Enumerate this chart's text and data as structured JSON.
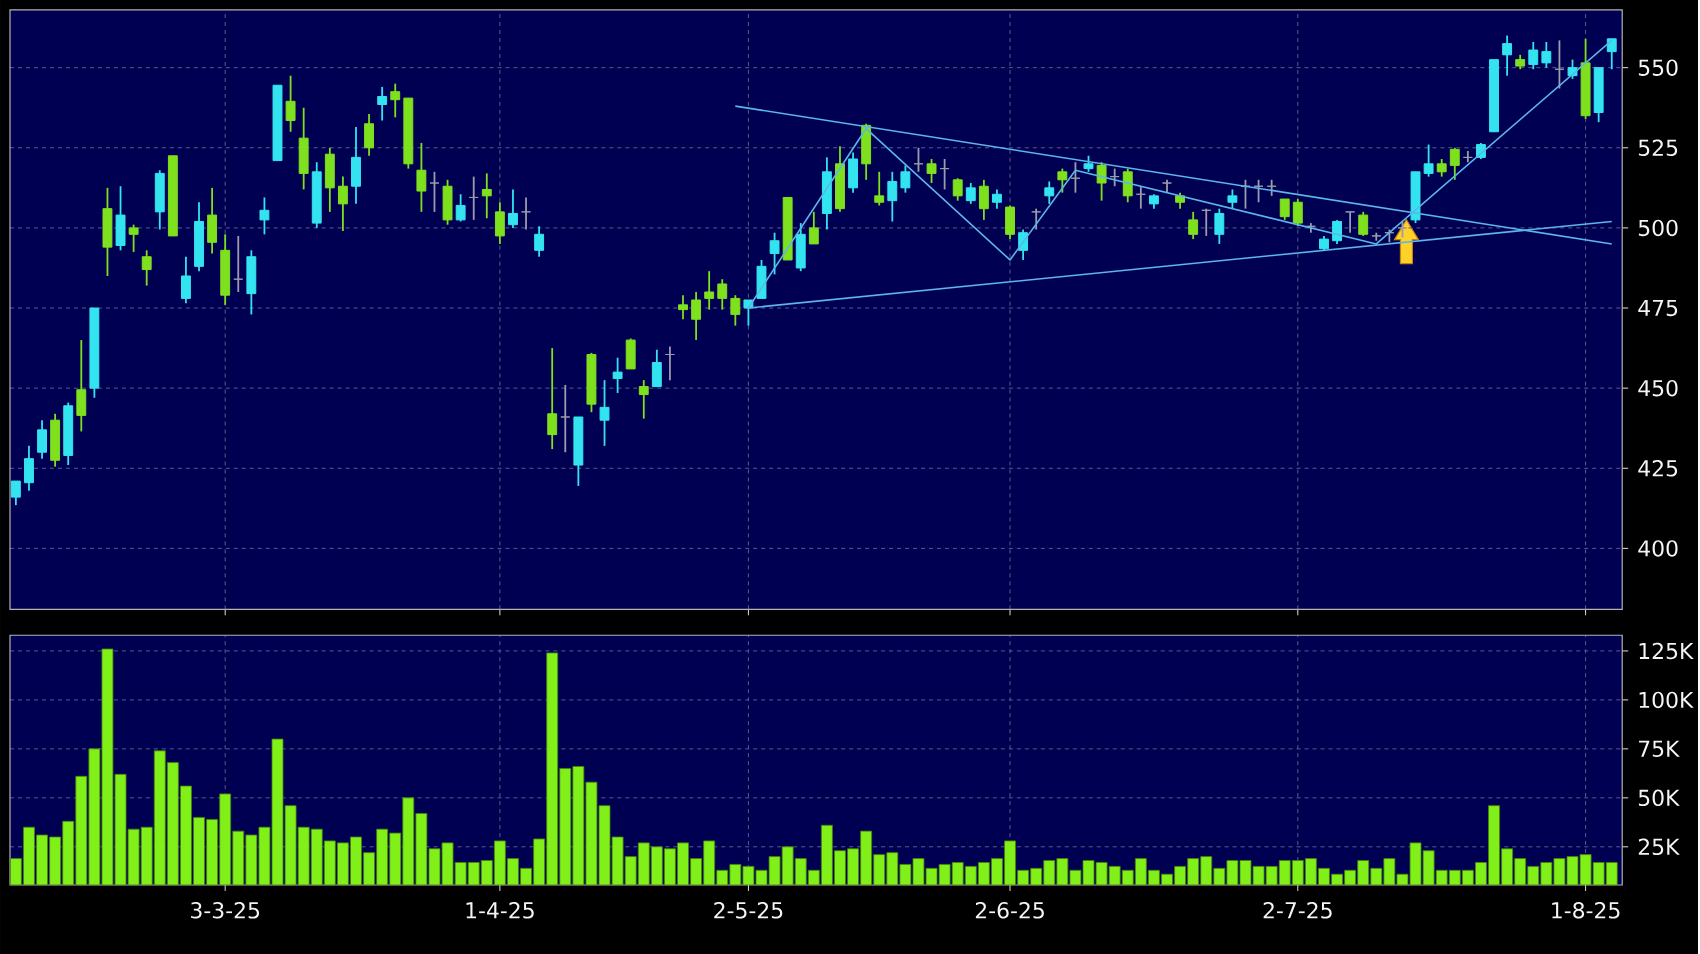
{
  "chart_data": [
    {
      "type": "candlestick",
      "tick_labels": "y",
      "grid": true,
      "categories": [
        null,
        null,
        null,
        null,
        null,
        null,
        null,
        null,
        null,
        null,
        null,
        null,
        null,
        null,
        null,
        null,
        null,
        null,
        null,
        null,
        null,
        null,
        null,
        null,
        null,
        null,
        null,
        null,
        null,
        null,
        null,
        null,
        null,
        null,
        null,
        null,
        null,
        null,
        null,
        null,
        null,
        null,
        null,
        null,
        null,
        null,
        null,
        null,
        null,
        null,
        null,
        null,
        null,
        null,
        null,
        null,
        null,
        null,
        null,
        null,
        null,
        null,
        null,
        null,
        null,
        null,
        null,
        null,
        null,
        null,
        null,
        null,
        null,
        null,
        null,
        null,
        null,
        null,
        null,
        null,
        null,
        null,
        null,
        null,
        null,
        null,
        null,
        null,
        null,
        null,
        null,
        null,
        null,
        null,
        null,
        null,
        null,
        null,
        null,
        null,
        null,
        null,
        null,
        null,
        null,
        null,
        null,
        null,
        null,
        null,
        null,
        null,
        null,
        null,
        null,
        null,
        null,
        null,
        null,
        null,
        null,
        null,
        null
      ],
      "ylim": [
        381,
        568
      ],
      "yticks": [
        400,
        425,
        450,
        475,
        500,
        525,
        550
      ],
      "ohlc": [
        [
          416,
          421,
          413.5,
          421
        ],
        [
          420.5,
          432,
          418,
          428
        ],
        [
          430,
          440,
          428,
          437
        ],
        [
          440,
          442,
          425.5,
          427.5
        ],
        [
          429,
          445.5,
          426,
          444.5
        ],
        [
          449.5,
          465,
          436.5,
          441.5
        ],
        [
          450,
          475,
          447,
          475
        ],
        [
          506,
          512.5,
          485,
          494
        ],
        [
          494.5,
          513,
          493,
          504
        ],
        [
          500,
          501,
          492.5,
          498
        ],
        [
          491,
          493,
          482,
          487
        ],
        [
          505,
          518,
          499.5,
          517
        ],
        [
          522.5,
          522.5,
          497.5,
          497.5
        ],
        [
          478,
          491,
          476.5,
          485
        ],
        [
          488,
          508,
          486.5,
          502
        ],
        [
          504,
          512.5,
          492,
          495.5
        ],
        [
          493,
          498,
          476,
          479
        ],
        [
          484,
          497.5,
          480,
          484
        ],
        [
          479.5,
          493,
          473,
          491
        ],
        [
          502.5,
          509.5,
          498,
          505.5
        ],
        [
          521,
          544.5,
          521,
          544.5
        ],
        [
          539.5,
          547.5,
          530,
          533.5
        ],
        [
          528,
          537.5,
          512,
          517
        ],
        [
          501.5,
          520.5,
          500,
          517.5
        ],
        [
          523,
          525,
          505,
          512.5
        ],
        [
          513,
          516,
          499,
          507.5
        ],
        [
          513,
          531.5,
          507.5,
          522
        ],
        [
          532.5,
          535.5,
          522.5,
          525
        ],
        [
          538.5,
          544,
          533.5,
          541
        ],
        [
          542.5,
          545,
          534.5,
          540
        ],
        [
          540.5,
          540.5,
          518.5,
          520
        ],
        [
          518,
          526.5,
          505,
          511.5
        ],
        [
          514,
          517.5,
          505,
          514
        ],
        [
          513,
          515,
          501,
          502.5
        ],
        [
          502.5,
          510.5,
          502,
          507
        ],
        [
          509.5,
          516,
          502.5,
          509.5
        ],
        [
          512,
          517,
          503,
          510
        ],
        [
          505,
          508,
          495,
          497.5
        ],
        [
          501,
          512,
          500,
          504.5
        ],
        [
          505,
          509.5,
          499.5,
          505
        ],
        [
          493,
          500.5,
          491,
          498
        ],
        [
          442,
          462.5,
          431,
          435.5
        ],
        [
          441,
          451,
          430,
          441
        ],
        [
          426,
          441,
          419.5,
          441
        ],
        [
          460.5,
          461,
          442.5,
          445
        ],
        [
          440,
          452.5,
          432,
          444
        ],
        [
          453,
          459.5,
          448.5,
          455
        ],
        [
          465,
          465.5,
          456,
          456
        ],
        [
          450.5,
          452.5,
          440.5,
          448
        ],
        [
          450.5,
          462,
          450.5,
          458
        ],
        [
          460.5,
          463,
          452.5,
          460.5
        ],
        [
          476,
          479,
          471.5,
          474.5
        ],
        [
          477.5,
          480,
          465,
          471.5
        ],
        [
          480,
          486.5,
          474.5,
          478
        ],
        [
          482.5,
          484,
          474.5,
          478
        ],
        [
          478,
          479,
          469.5,
          473
        ],
        [
          475,
          477.5,
          469.5,
          477.5
        ],
        [
          478,
          490,
          478,
          488
        ],
        [
          492,
          498.5,
          485.5,
          496
        ],
        [
          509.5,
          509.5,
          490,
          490
        ],
        [
          487.5,
          501.5,
          486.5,
          498
        ],
        [
          500,
          505,
          495,
          495
        ],
        [
          504.5,
          522,
          499.5,
          517.5
        ],
        [
          520,
          525.5,
          505,
          506
        ],
        [
          512.5,
          523.5,
          511,
          521.5
        ],
        [
          532,
          532.5,
          515,
          520
        ],
        [
          510,
          517.5,
          507,
          508
        ],
        [
          508.5,
          517.5,
          502,
          514.5
        ],
        [
          512.5,
          519.5,
          511,
          517.5
        ],
        [
          520,
          525,
          517.5,
          520
        ],
        [
          520,
          521.5,
          514,
          517
        ],
        [
          518.5,
          521.5,
          512,
          518.5
        ],
        [
          515,
          515.5,
          508.5,
          510
        ],
        [
          508.5,
          514,
          507.5,
          512.5
        ],
        [
          513,
          515,
          502.5,
          506
        ],
        [
          508,
          512,
          506,
          510.5
        ],
        [
          506.5,
          507,
          496.5,
          498
        ],
        [
          493,
          499.5,
          490,
          498.5
        ],
        [
          505,
          506,
          499.5,
          505
        ],
        [
          510,
          514.5,
          507.5,
          512.5
        ],
        [
          517.5,
          518.5,
          511,
          515
        ],
        [
          515.5,
          520.5,
          511,
          515.5
        ],
        [
          518.5,
          522.5,
          517.5,
          520
        ],
        [
          519.5,
          520.5,
          508.5,
          514
        ],
        [
          516,
          518.5,
          513,
          516
        ],
        [
          517.5,
          518.5,
          508,
          510
        ],
        [
          510.5,
          513,
          506,
          510.5
        ],
        [
          507.5,
          510.5,
          506,
          510
        ],
        [
          514,
          515,
          511,
          514
        ],
        [
          510,
          511,
          506,
          508
        ],
        [
          502.5,
          505,
          496.5,
          498
        ],
        [
          505.5,
          506,
          497.5,
          505.5
        ],
        [
          498,
          506,
          495,
          504.5
        ],
        [
          508,
          512,
          506,
          510
        ],
        [
          513,
          515,
          506,
          513
        ],
        [
          513,
          515,
          508,
          513
        ],
        [
          513,
          515,
          510,
          513
        ],
        [
          509,
          509,
          502.5,
          503.5
        ],
        [
          508,
          509,
          500.5,
          501.5
        ],
        [
          500.5,
          501.5,
          498.5,
          500.5
        ],
        [
          493.5,
          497.5,
          493,
          496.5
        ],
        [
          496,
          502.5,
          495,
          502
        ],
        [
          505,
          505,
          498.5,
          505
        ],
        [
          504,
          505,
          497.5,
          498
        ],
        [
          497.5,
          498.5,
          496,
          497.5
        ],
        [
          498.5,
          499.5,
          495.5,
          498.5
        ],
        [
          500,
          502,
          497,
          500
        ],
        [
          502.5,
          517.5,
          501.5,
          517.5
        ],
        [
          517,
          526,
          516,
          520
        ],
        [
          520,
          521.5,
          516,
          517.5
        ],
        [
          524.5,
          525,
          515,
          519.5
        ],
        [
          522,
          524,
          520.5,
          522
        ],
        [
          522,
          526.5,
          521.5,
          526
        ],
        [
          530,
          552.5,
          530,
          552.5
        ],
        [
          554,
          560,
          547.5,
          557.5
        ],
        [
          552.5,
          554,
          549.5,
          550.5
        ],
        [
          551,
          558,
          549.5,
          555.5
        ],
        [
          551.5,
          558,
          550,
          555
        ],
        [
          549.5,
          558.5,
          543.5,
          549.5
        ],
        [
          547.5,
          552.5,
          546.5,
          550
        ],
        [
          551.5,
          559,
          534,
          535
        ],
        [
          536,
          550,
          533,
          550
        ],
        [
          555,
          559,
          549.5,
          559
        ]
      ],
      "colors": [
        "#33e4f0",
        "#33e4f0",
        "#33e4f0",
        "#7fe01e",
        "#33e4f0",
        "#7fe01e",
        "#33e4f0",
        "#7fe01e",
        "#33e4f0",
        "#7fe01e",
        "#7fe01e",
        "#33e4f0",
        "#7fe01e",
        "#33e4f0",
        "#33e4f0",
        "#7fe01e",
        "#7fe01e",
        "#9c9cac",
        "#33e4f0",
        "#33e4f0",
        "#33e4f0",
        "#7fe01e",
        "#7fe01e",
        "#33e4f0",
        "#7fe01e",
        "#7fe01e",
        "#33e4f0",
        "#7fe01e",
        "#33e4f0",
        "#7fe01e",
        "#7fe01e",
        "#7fe01e",
        "#9c9cac",
        "#7fe01e",
        "#33e4f0",
        "#9c9cac",
        "#7fe01e",
        "#7fe01e",
        "#33e4f0",
        "#9c9cac",
        "#33e4f0",
        "#7fe01e",
        "#9c9cac",
        "#33e4f0",
        "#7fe01e",
        "#33e4f0",
        "#33e4f0",
        "#7fe01e",
        "#7fe01e",
        "#33e4f0",
        "#9c9cac",
        "#7fe01e",
        "#7fe01e",
        "#7fe01e",
        "#7fe01e",
        "#7fe01e",
        "#33e4f0",
        "#33e4f0",
        "#33e4f0",
        "#7fe01e",
        "#33e4f0",
        "#7fe01e",
        "#33e4f0",
        "#7fe01e",
        "#33e4f0",
        "#7fe01e",
        "#7fe01e",
        "#33e4f0",
        "#33e4f0",
        "#9c9cac",
        "#7fe01e",
        "#9c9cac",
        "#7fe01e",
        "#33e4f0",
        "#7fe01e",
        "#33e4f0",
        "#7fe01e",
        "#33e4f0",
        "#9c9cac",
        "#33e4f0",
        "#7fe01e",
        "#9c9cac",
        "#33e4f0",
        "#7fe01e",
        "#9c9cac",
        "#7fe01e",
        "#9c9cac",
        "#33e4f0",
        "#9c9cac",
        "#7fe01e",
        "#7fe01e",
        "#9c9cac",
        "#33e4f0",
        "#33e4f0",
        "#9c9cac",
        "#9c9cac",
        "#9c9cac",
        "#7fe01e",
        "#7fe01e",
        "#9c9cac",
        "#33e4f0",
        "#33e4f0",
        "#9c9cac",
        "#7fe01e",
        "#9c9cac",
        "#9c9cac",
        "#9c9cac",
        "#33e4f0",
        "#33e4f0",
        "#7fe01e",
        "#7fe01e",
        "#9c9cac",
        "#33e4f0",
        "#33e4f0",
        "#33e4f0",
        "#7fe01e",
        "#33e4f0",
        "#33e4f0",
        "#9c9cac",
        "#33e4f0",
        "#7fe01e",
        "#33e4f0",
        "#33e4f0"
      ],
      "series": [
        {
          "type": "line",
          "color": "#5cb6ea",
          "values": [
            null,
            null,
            null,
            null,
            null,
            null,
            null,
            null,
            null,
            null,
            null,
            null,
            null,
            null,
            null,
            null,
            null,
            null,
            null,
            null,
            null,
            null,
            null,
            null,
            null,
            null,
            null,
            null,
            null,
            null,
            null,
            null,
            null,
            null,
            null,
            null,
            null,
            null,
            null,
            null,
            null,
            null,
            null,
            null,
            null,
            null,
            null,
            null,
            null,
            null,
            null,
            null,
            null,
            null,
            null,
            538,
            null,
            null,
            null,
            null,
            null,
            null,
            null,
            null,
            null,
            null,
            null,
            null,
            null,
            null,
            null,
            null,
            null,
            null,
            null,
            null,
            null,
            null,
            null,
            null,
            null,
            null,
            null,
            null,
            null,
            null,
            null,
            null,
            null,
            null,
            null,
            null,
            null,
            null,
            null,
            null,
            null,
            null,
            null,
            null,
            null,
            null,
            null,
            null,
            null,
            null,
            null,
            null,
            null,
            null,
            null,
            null,
            null,
            null,
            null,
            null,
            null,
            null,
            null,
            null,
            null,
            null,
            495
          ]
        },
        {
          "type": "line",
          "color": "#5cb6ea",
          "values": [
            null,
            null,
            null,
            null,
            null,
            null,
            null,
            null,
            null,
            null,
            null,
            null,
            null,
            null,
            null,
            null,
            null,
            null,
            null,
            null,
            null,
            null,
            null,
            null,
            null,
            null,
            null,
            null,
            null,
            null,
            null,
            null,
            null,
            null,
            null,
            null,
            null,
            null,
            null,
            null,
            null,
            null,
            null,
            null,
            null,
            null,
            null,
            null,
            null,
            null,
            null,
            null,
            null,
            null,
            null,
            null,
            475,
            null,
            null,
            null,
            null,
            null,
            null,
            null,
            null,
            null,
            null,
            null,
            null,
            null,
            null,
            null,
            null,
            null,
            null,
            null,
            null,
            null,
            null,
            null,
            null,
            null,
            null,
            null,
            null,
            null,
            null,
            null,
            null,
            null,
            null,
            null,
            null,
            null,
            null,
            null,
            null,
            null,
            null,
            null,
            null,
            null,
            null,
            null,
            null,
            null,
            null,
            null,
            null,
            null,
            null,
            null,
            null,
            null,
            null,
            null,
            null,
            null,
            null,
            null,
            null,
            null,
            502
          ]
        },
        {
          "type": "line",
          "color": "#5cb6ea",
          "values": [
            null,
            null,
            null,
            null,
            null,
            null,
            null,
            null,
            null,
            null,
            null,
            null,
            null,
            null,
            null,
            null,
            null,
            null,
            null,
            null,
            null,
            null,
            null,
            null,
            null,
            null,
            null,
            null,
            null,
            null,
            null,
            null,
            null,
            null,
            null,
            null,
            null,
            null,
            null,
            null,
            null,
            null,
            null,
            null,
            null,
            null,
            null,
            null,
            null,
            null,
            null,
            null,
            null,
            null,
            null,
            null,
            475,
            null,
            null,
            null,
            null,
            null,
            null,
            null,
            null,
            531,
            null,
            null,
            null,
            null,
            null,
            null,
            null,
            null,
            null,
            null,
            490,
            null,
            null,
            null,
            null,
            518,
            null,
            null,
            null,
            null,
            null,
            null,
            null,
            null,
            null,
            null,
            null,
            null,
            null,
            null,
            null,
            null,
            null,
            null,
            null,
            null,
            null,
            null,
            495,
            null,
            null,
            null,
            null,
            null,
            null,
            null,
            null,
            null,
            null,
            null,
            null,
            null,
            null,
            null,
            null,
            null,
            558.5
          ]
        }
      ]
    },
    {
      "type": "bar",
      "grid": true,
      "color": "#80f018",
      "categories": [
        null,
        null,
        null,
        null,
        null,
        null,
        null,
        null,
        null,
        null,
        null,
        null,
        null,
        null,
        null,
        null,
        "3-3-25",
        null,
        null,
        null,
        null,
        null,
        null,
        null,
        null,
        null,
        null,
        null,
        null,
        null,
        null,
        null,
        null,
        null,
        null,
        null,
        null,
        "1-4-25",
        null,
        null,
        null,
        null,
        null,
        null,
        null,
        null,
        null,
        null,
        null,
        null,
        null,
        null,
        null,
        null,
        null,
        null,
        "2-5-25",
        null,
        null,
        null,
        null,
        null,
        null,
        null,
        null,
        null,
        null,
        null,
        null,
        null,
        null,
        null,
        null,
        null,
        null,
        null,
        "2-6-25",
        null,
        null,
        null,
        null,
        null,
        null,
        null,
        null,
        null,
        null,
        null,
        null,
        null,
        null,
        null,
        null,
        null,
        null,
        null,
        null,
        null,
        "2-7-25",
        null,
        null,
        null,
        null,
        null,
        null,
        null,
        null,
        null,
        null,
        null,
        null,
        null,
        null,
        null,
        null,
        null,
        null,
        null,
        null,
        null,
        "1-8-25",
        null,
        null
      ],
      "ylim": [
        5500,
        133000
      ],
      "yticks": [
        {
          "value": 25000,
          "label": "25K"
        },
        {
          "value": 50000,
          "label": "50K"
        },
        {
          "value": 75000,
          "label": "75K"
        },
        {
          "value": 100000,
          "label": "100K"
        },
        {
          "value": 125000,
          "label": "125K"
        }
      ],
      "values": [
        19000,
        35000,
        31000,
        30000,
        38000,
        61000,
        75000,
        126000,
        62000,
        34000,
        35000,
        74000,
        68000,
        56000,
        40000,
        39000,
        52000,
        33000,
        31000,
        35000,
        80000,
        46000,
        35000,
        34000,
        28000,
        27000,
        30000,
        22000,
        34000,
        32000,
        50000,
        42000,
        24000,
        27000,
        17000,
        17000,
        18000,
        28000,
        19000,
        14000,
        29000,
        124000,
        65000,
        66000,
        58000,
        46000,
        30000,
        20000,
        27000,
        25000,
        24000,
        27000,
        19000,
        28000,
        13000,
        16000,
        15000,
        13000,
        20000,
        25000,
        19000,
        13000,
        36000,
        23000,
        24000,
        33000,
        21000,
        22000,
        16000,
        19000,
        14000,
        16000,
        17000,
        15000,
        17000,
        19000,
        28000,
        13000,
        14000,
        18000,
        19000,
        13000,
        18000,
        17000,
        15000,
        13000,
        19000,
        13000,
        11000,
        15000,
        19000,
        20000,
        14000,
        18000,
        18000,
        15000,
        15000,
        18000,
        18000,
        19000,
        14000,
        11000,
        13000,
        18000,
        14000,
        19000,
        11000,
        27000,
        23000,
        13000,
        13000,
        13000,
        17000,
        46000,
        24000,
        19000,
        15000,
        17000,
        19000,
        20000,
        21000,
        17000,
        17000
      ]
    }
  ]
}
